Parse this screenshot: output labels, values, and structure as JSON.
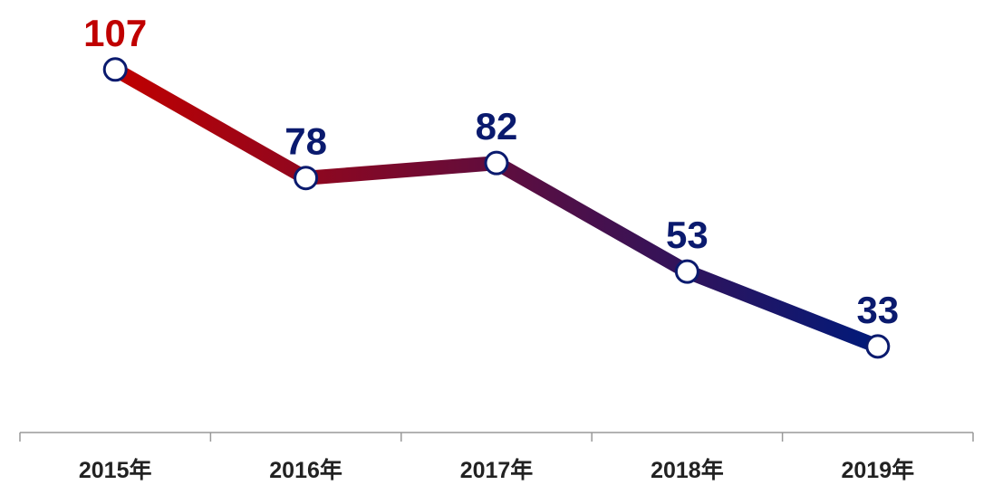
{
  "chart_data": {
    "type": "line",
    "categories": [
      "2015年",
      "2016年",
      "2017年",
      "2018年",
      "2019年"
    ],
    "values": [
      107,
      78,
      82,
      53,
      33
    ],
    "ylim": [
      10,
      120
    ],
    "line_colors": [
      "#c00000",
      "#001a7a"
    ],
    "marker_stroke": "#0a1a6e",
    "value_label_colors": [
      "#c00000",
      "#0a1a6e",
      "#0a1a6e",
      "#0a1a6e",
      "#0a1a6e"
    ],
    "axis_color": "#999999"
  }
}
